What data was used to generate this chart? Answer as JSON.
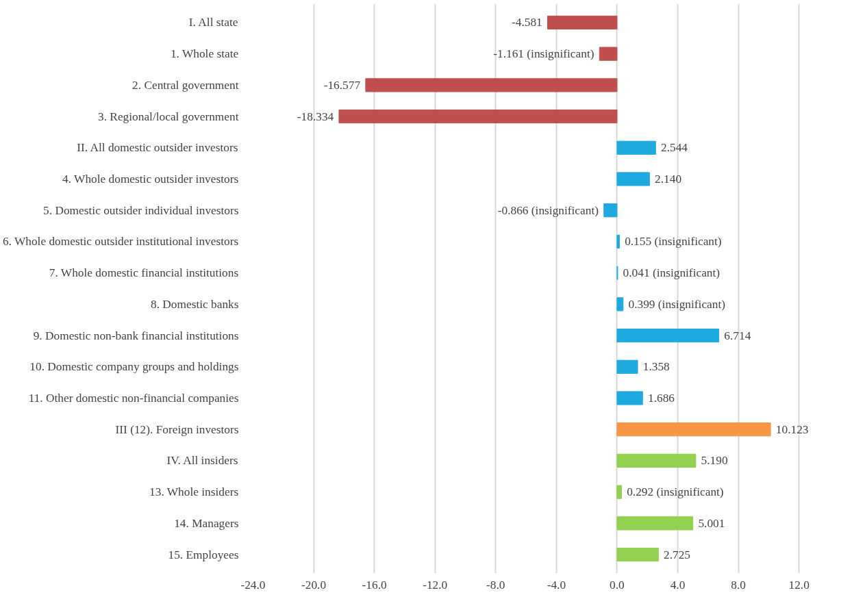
{
  "chart_data": {
    "type": "bar",
    "orientation": "horizontal",
    "categories": [
      "I. All state",
      "1. Whole state",
      "2. Central government",
      "3. Regional/local government",
      "II. All domestic outsider investors",
      "4. Whole domestic outsider investors",
      "5. Domestic outsider individual investors",
      "6. Whole domestic outsider institutional investors",
      "7. Whole domestic financial institutions",
      "8. Domestic banks",
      "9. Domestic non-bank financial institutions",
      "10. Domestic company groups and holdings",
      "11. Other domestic non-financial companies",
      "III (12). Foreign investors",
      "IV. All insiders",
      "13. Whole insiders",
      "14. Managers",
      "15. Employees"
    ],
    "values": [
      -4.581,
      -1.161,
      -16.577,
      -18.334,
      2.544,
      2.14,
      -0.866,
      0.155,
      0.041,
      0.399,
      6.714,
      1.358,
      1.686,
      10.123,
      5.19,
      0.292,
      5.001,
      2.725
    ],
    "value_labels": [
      "-4.581",
      "-1.161 (insignificant)",
      "-16.577",
      "-18.334",
      "2.544",
      "2.140",
      "-0.866 (insignificant)",
      "0.155 (insignificant)",
      "0.041 (insignificant)",
      "0.399 (insignificant)",
      "6.714",
      "1.358",
      "1.686",
      "10.123",
      "5.190",
      "0.292 (insignificant)",
      "5.001",
      "2.725"
    ],
    "colors": [
      "#c0504d",
      "#c0504d",
      "#c0504d",
      "#c0504d",
      "#1fa9e1",
      "#1fa9e1",
      "#1fa9e1",
      "#1fa9e1",
      "#1fa9e1",
      "#1fa9e1",
      "#1fa9e1",
      "#1fa9e1",
      "#1fa9e1",
      "#f79646",
      "#92d050",
      "#92d050",
      "#92d050",
      "#92d050"
    ],
    "xlim": [
      -24,
      12
    ],
    "xticks": [
      {
        "value": -24,
        "label": "-24.0"
      },
      {
        "value": -20,
        "label": "-20.0"
      },
      {
        "value": -16,
        "label": "-16.0"
      },
      {
        "value": -12,
        "label": "-12.0"
      },
      {
        "value": -8,
        "label": "-8.0"
      },
      {
        "value": -4,
        "label": "-4.0"
      },
      {
        "value": 0,
        "label": "0.0"
      },
      {
        "value": 4,
        "label": "4.0"
      },
      {
        "value": 8,
        "label": "8.0"
      },
      {
        "value": 12,
        "label": "12.0"
      }
    ],
    "grid": "x"
  }
}
